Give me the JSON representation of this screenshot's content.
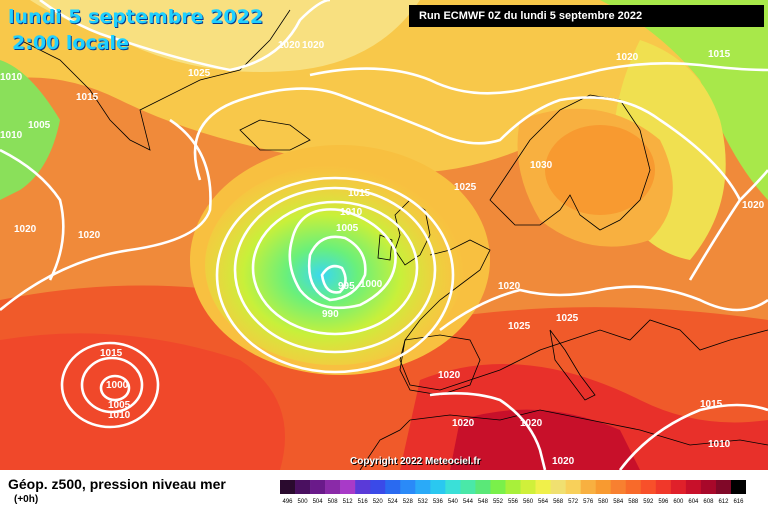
{
  "header": {
    "date": "lundi 5 septembre 2022",
    "local_time": "2:00 locale",
    "run": "Run ECMWF 0Z du lundi 5 septembre 2022"
  },
  "copyright": "Copyright 2022 Meteociel.fr",
  "footer": {
    "title": "Géop. z500, pression niveau mer",
    "subtitle": "(+0h)"
  },
  "isobar_labels": [
    "1020",
    "1020",
    "1010",
    "1015",
    "1005",
    "1010",
    "1025",
    "1015",
    "1010",
    "1005",
    "995",
    "1000",
    "990",
    "1020",
    "1030",
    "1025",
    "1020",
    "1025",
    "1025",
    "1020",
    "1015",
    "1000",
    "1005",
    "1010",
    "1020",
    "1020",
    "1020",
    "1020",
    "1015",
    "1010",
    "1020",
    "1015",
    "1020"
  ],
  "scale": {
    "labels": [
      "496",
      "500",
      "504",
      "508",
      "512",
      "516",
      "520",
      "524",
      "528",
      "532",
      "536",
      "540",
      "544",
      "548",
      "552",
      "556",
      "560",
      "564",
      "568",
      "572",
      "576",
      "580",
      "584",
      "588",
      "592",
      "596",
      "600",
      "604",
      "608",
      "612",
      "616"
    ],
    "colors": [
      "#2a0a2e",
      "#4a1060",
      "#6a1a8a",
      "#8a2aa8",
      "#a83ac8",
      "#5a3ad8",
      "#3a4ae8",
      "#2a6af0",
      "#2a8af8",
      "#2aaaf8",
      "#2ac8f0",
      "#3ae0d8",
      "#4ae8a8",
      "#5ae878",
      "#7af04a",
      "#a8f03a",
      "#d0f03a",
      "#f0f04a",
      "#f0e070",
      "#f8d05a",
      "#f8b040",
      "#f89a30",
      "#f88030",
      "#f86a2a",
      "#f8502a",
      "#f0382a",
      "#e0202a",
      "#c8102a",
      "#a8082a",
      "#800828",
      "#000000"
    ]
  }
}
